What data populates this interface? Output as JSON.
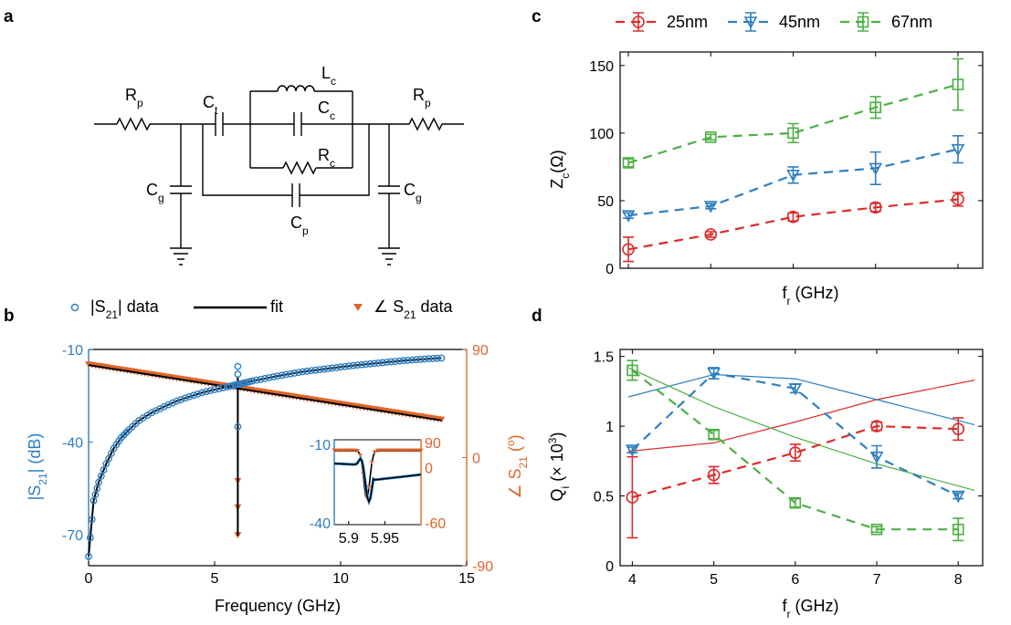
{
  "panel_labels": {
    "a": "a",
    "b": "b",
    "c": "c",
    "d": "d"
  },
  "circuit": {
    "labels": [
      {
        "id": "rp-left",
        "main": "R",
        "sub": "p"
      },
      {
        "id": "ct",
        "main": "C",
        "sub": "t"
      },
      {
        "id": "lc",
        "main": "L",
        "sub": "c"
      },
      {
        "id": "cc",
        "main": "C",
        "sub": "c"
      },
      {
        "id": "rc",
        "main": "R",
        "sub": "c"
      },
      {
        "id": "rp-right",
        "main": "R",
        "sub": "p"
      },
      {
        "id": "cg-left",
        "main": "C",
        "sub": "g"
      },
      {
        "id": "cp",
        "main": "C",
        "sub": "p"
      },
      {
        "id": "cg-right",
        "main": "C",
        "sub": "g"
      }
    ]
  },
  "colors": {
    "red": "#dd2b2b",
    "blue": "#2f7fbf",
    "green": "#4caf44",
    "orange": "#e0662a",
    "black": "#000000"
  },
  "chart_data": [
    {
      "id": "b",
      "type": "scatter",
      "xlabel": "Frequency (GHz)",
      "ylabel_left": {
        "pre": "|S",
        "sub": "21",
        "post": "| (dB)"
      },
      "ylabel_right": {
        "pre": "∠ S",
        "sub": "21",
        "post": " (",
        "sup": "o",
        "end": ")"
      },
      "xlim": [
        0,
        15
      ],
      "ylim_left": [
        -80,
        -10
      ],
      "ylim_right": [
        -90,
        90
      ],
      "xticks": [
        "0",
        "5",
        "10",
        "15"
      ],
      "yticks_left": [
        "-70",
        "-40",
        "-10"
      ],
      "yticks_right": [
        "-90",
        "0",
        "90"
      ],
      "legend": [
        {
          "label_pre": "|S",
          "label_sub": "21",
          "label_post": "| data",
          "marker": "circle",
          "color": "#2f7fbf"
        },
        {
          "label_pre": "fit",
          "label_sub": "",
          "label_post": "",
          "marker": "line",
          "color": "#000000"
        },
        {
          "label_pre": "∠ S",
          "label_sub": "21",
          "label_post": " data",
          "marker": "triangle",
          "color": "#e0662a"
        }
      ],
      "magnitude": {
        "x": [
          0,
          0.2,
          0.4,
          0.7,
          1.0,
          1.3,
          1.6,
          2.0,
          2.5,
          3.0,
          3.5,
          4.0,
          4.5,
          5.0,
          5.5,
          5.8,
          6.0,
          6.2,
          6.5,
          7.0,
          7.5,
          8.0,
          8.5,
          9.0,
          9.5,
          10.0,
          10.5,
          11.0,
          11.5,
          12.0,
          12.5,
          13.0,
          13.5,
          14.0
        ],
        "y": [
          -77,
          -59,
          -53,
          -47,
          -42,
          -38.5,
          -36,
          -33,
          -30.5,
          -28.5,
          -26.7,
          -25.3,
          -24,
          -23,
          -22.1,
          -21.5,
          -21.2,
          -20.8,
          -20.2,
          -19.4,
          -18.6,
          -17.9,
          -17.2,
          -16.7,
          -16.2,
          -15.7,
          -15.2,
          -14.8,
          -14.4,
          -14.0,
          -13.6,
          -13.3,
          -13.0,
          -12.8
        ]
      },
      "resonance": {
        "x": 5.92,
        "mag_peak": -15.5,
        "mag_dip": -35,
        "phase_dip": -65
      },
      "phase": {
        "x0": 0,
        "y0": 77,
        "x1": 14,
        "y1": 31
      },
      "inset": {
        "xlim": [
          5.88,
          6.0
        ],
        "xticks": [
          "5.9",
          "5.95"
        ],
        "yticks_left": [
          "-10",
          "-40"
        ],
        "yticks_right": [
          "90",
          "0",
          "-60"
        ]
      }
    },
    {
      "id": "c",
      "type": "line",
      "xlabel_pre": "f",
      "xlabel_sub": "r",
      "xlabel_post": " (GHz)",
      "ylabel_pre": "Z",
      "ylabel_sub": "c",
      "ylabel_post": "(Ω)",
      "ylim": [
        0,
        160
      ],
      "xlim": [
        3.9,
        8.3
      ],
      "yticks": [
        "0",
        "50",
        "100",
        "150"
      ],
      "series": [
        {
          "name": "25nm",
          "color": "#dd2b2b",
          "marker": "circle",
          "x": [
            4.0,
            5.0,
            6.0,
            7.0,
            8.0
          ],
          "y": [
            14,
            25,
            38,
            45,
            51
          ],
          "err": [
            9,
            2,
            3,
            3,
            5
          ]
        },
        {
          "name": "45nm",
          "color": "#2f7fbf",
          "marker": "triangle",
          "x": [
            4.0,
            5.0,
            6.0,
            7.0,
            8.0
          ],
          "y": [
            39,
            46,
            69,
            74,
            88
          ],
          "err": [
            2,
            2,
            6,
            12,
            10
          ]
        },
        {
          "name": "67nm",
          "color": "#4caf44",
          "marker": "square",
          "x": [
            4.0,
            5.0,
            6.0,
            7.0,
            8.0
          ],
          "y": [
            78,
            97,
            100,
            119,
            136
          ],
          "err": [
            3,
            2,
            7,
            8,
            19
          ]
        }
      ]
    },
    {
      "id": "d",
      "type": "line",
      "xlabel_pre": "f",
      "xlabel_sub": "r",
      "xlabel_post": " (GHz)",
      "ylabel_pre": "Q",
      "ylabel_sub": "i",
      "ylabel_post": " (× 10",
      "ylabel_sup": "3",
      "ylabel_end": ")",
      "ylim": [
        0,
        1.55
      ],
      "xlim": [
        3.85,
        8.3
      ],
      "xticks": [
        "4",
        "5",
        "6",
        "7",
        "8"
      ],
      "yticks": [
        "0",
        "0.5",
        "1",
        "1.5"
      ],
      "series": [
        {
          "name": "25nm",
          "color": "#dd2b2b",
          "marker": "circle",
          "x": [
            4.0,
            5.0,
            6.0,
            7.0,
            8.0
          ],
          "y": [
            0.49,
            0.65,
            0.81,
            1.0,
            0.98
          ],
          "err": [
            0.29,
            0.06,
            0.06,
            0.03,
            0.08
          ]
        },
        {
          "name": "45nm",
          "color": "#2f7fbf",
          "marker": "triangle",
          "x": [
            4.0,
            5.0,
            6.0,
            7.0,
            8.0
          ],
          "y": [
            0.83,
            1.38,
            1.27,
            0.78,
            0.5
          ],
          "err": [
            0.02,
            0.04,
            0.03,
            0.08,
            0.02
          ]
        },
        {
          "name": "67nm",
          "color": "#4caf44",
          "marker": "square",
          "x": [
            4.0,
            5.0,
            6.0,
            7.0,
            8.0
          ],
          "y": [
            1.4,
            0.94,
            0.45,
            0.26,
            0.26
          ],
          "err": [
            0.07,
            0.03,
            0.03,
            0.02,
            0.08
          ]
        }
      ],
      "model_lines": [
        {
          "color": "#dd2b2b",
          "x": [
            3.95,
            5.0,
            6.0,
            7.0,
            8.2
          ],
          "y": [
            0.82,
            0.88,
            1.03,
            1.19,
            1.33
          ]
        },
        {
          "color": "#2f7fbf",
          "x": [
            3.95,
            5.0,
            6.0,
            7.0,
            8.2
          ],
          "y": [
            1.21,
            1.37,
            1.34,
            1.19,
            1.01
          ]
        },
        {
          "color": "#4caf44",
          "x": [
            3.95,
            5.0,
            6.0,
            7.0,
            8.2
          ],
          "y": [
            1.42,
            1.14,
            0.92,
            0.73,
            0.54
          ]
        }
      ]
    }
  ]
}
